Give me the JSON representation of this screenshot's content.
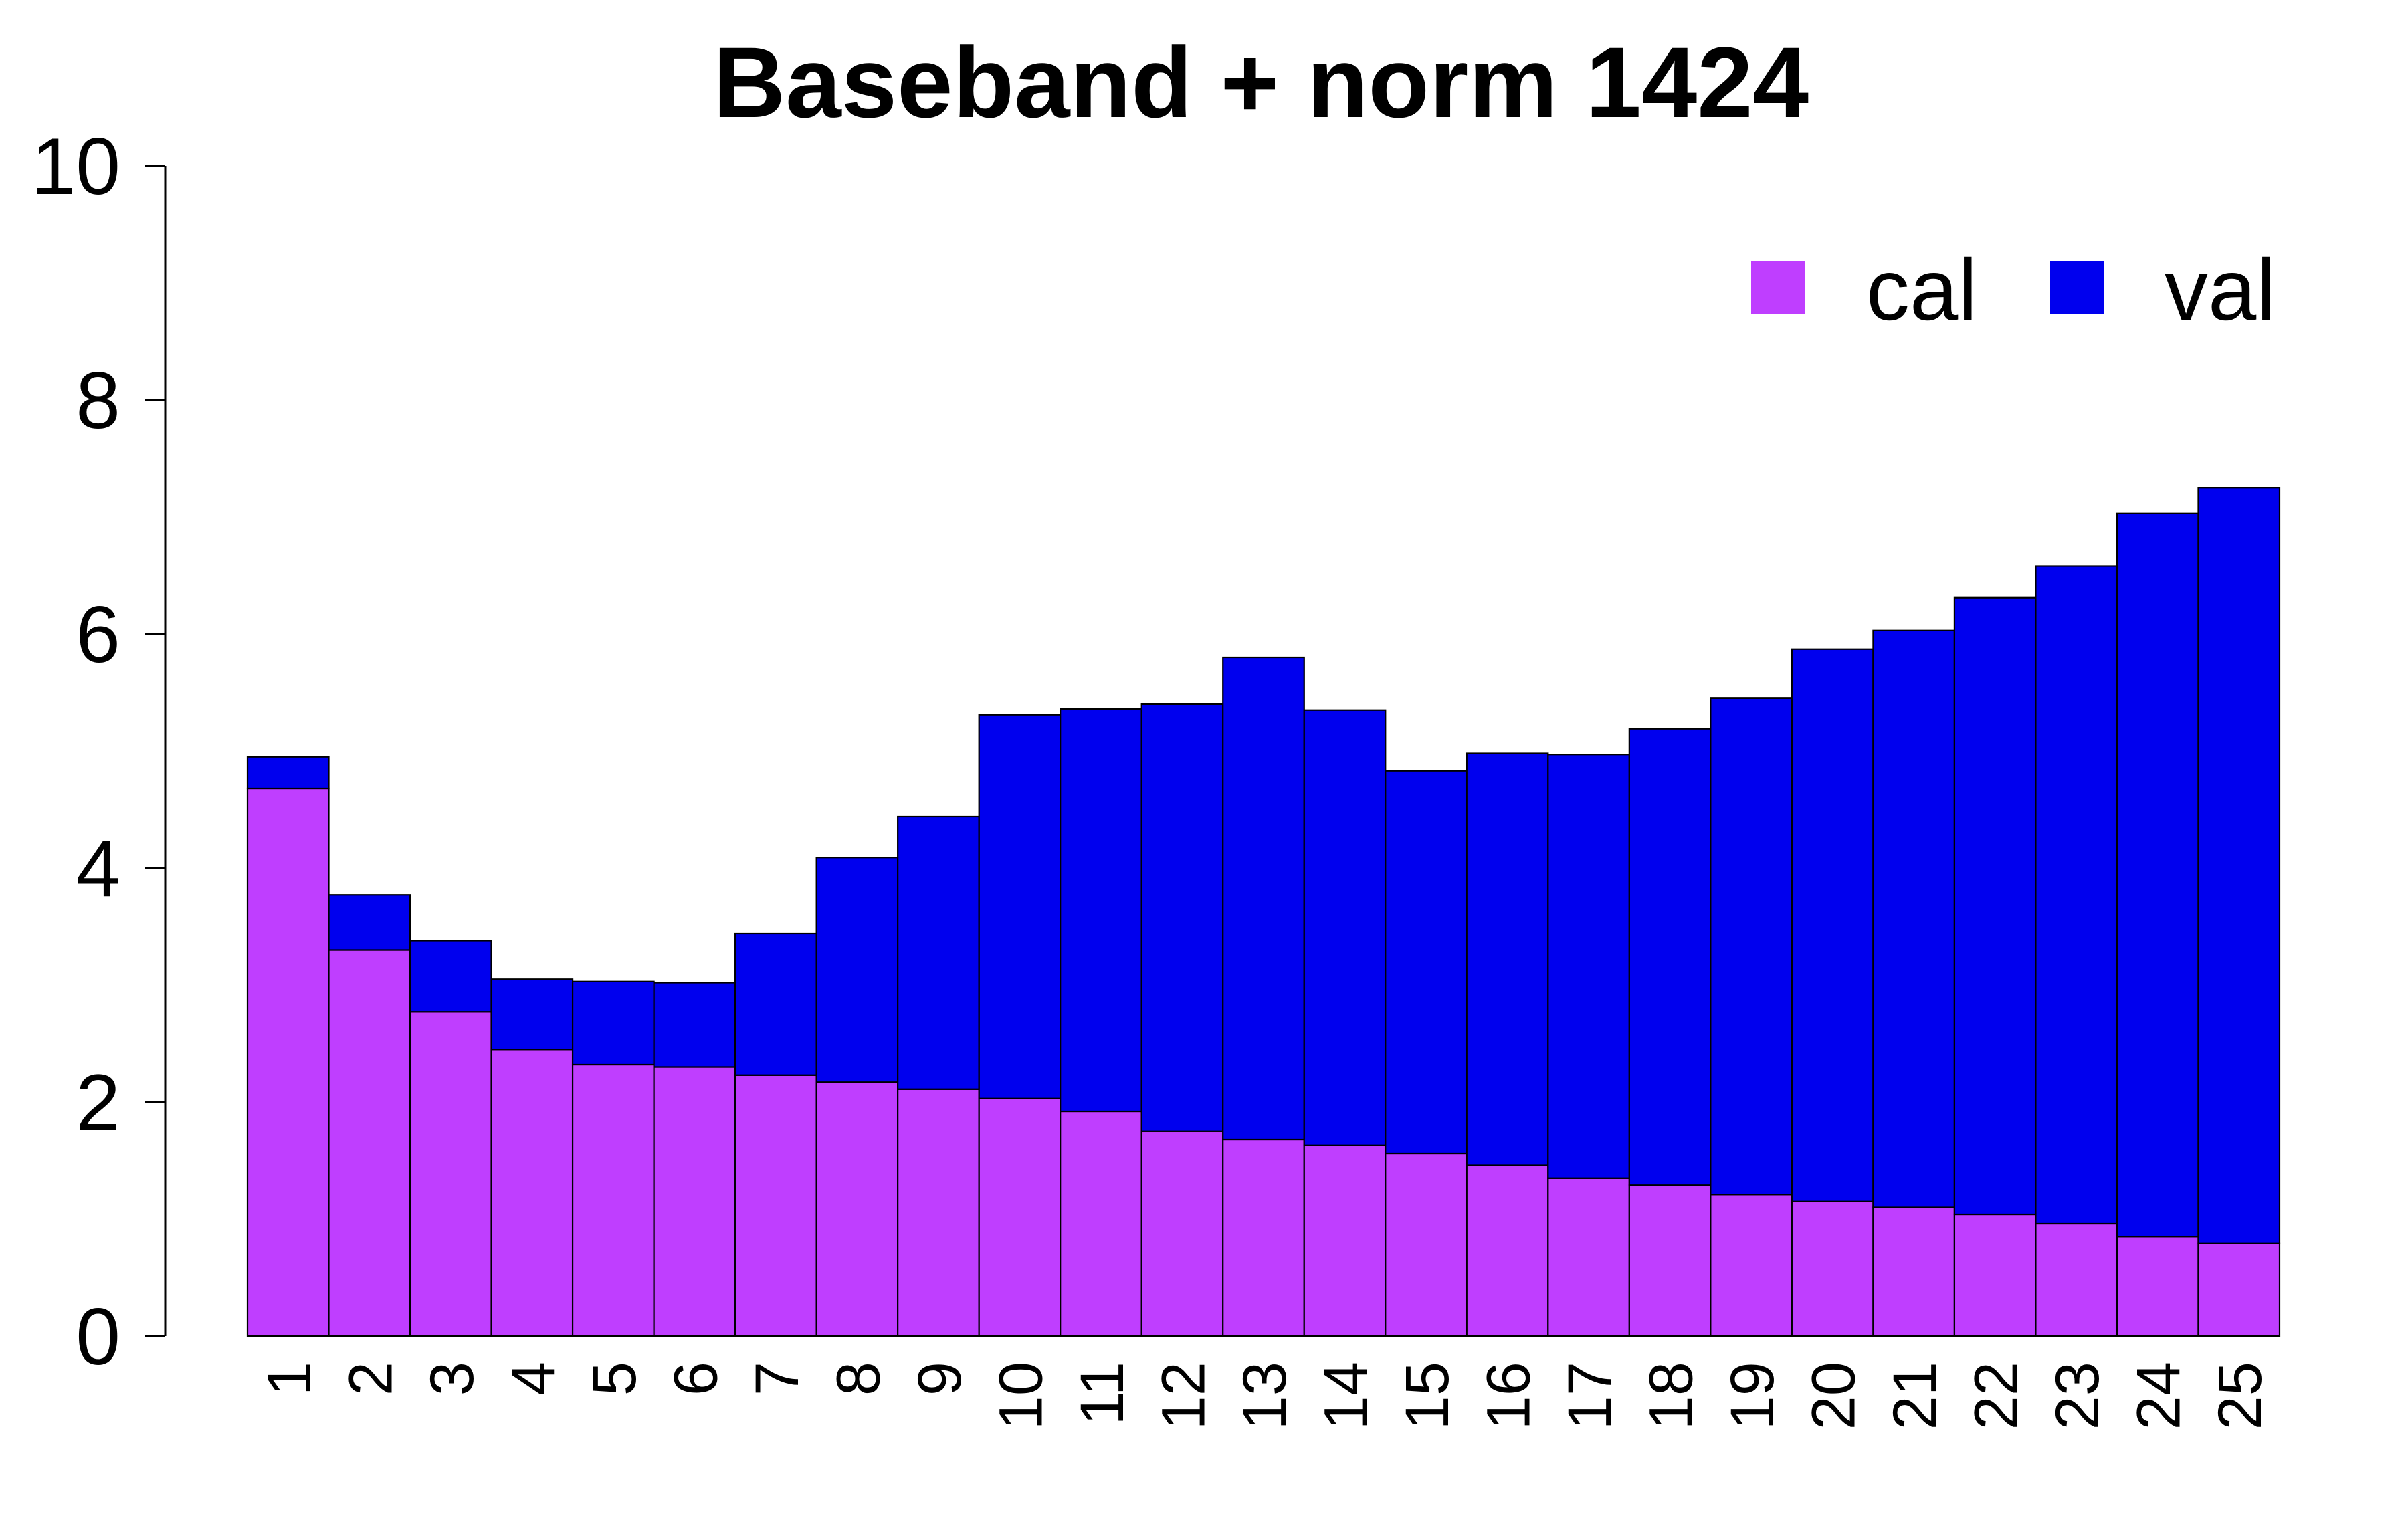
{
  "chart_data": {
    "type": "bar",
    "stacked": true,
    "title": "Baseband + norm 1424",
    "xlabel": "",
    "ylabel": "",
    "ylim": [
      0,
      10
    ],
    "yticks": [
      0,
      2,
      4,
      6,
      8,
      10
    ],
    "grid": false,
    "legend_position": "top-right",
    "categories": [
      "1",
      "2",
      "3",
      "4",
      "5",
      "6",
      "7",
      "8",
      "9",
      "10",
      "11",
      "12",
      "13",
      "14",
      "15",
      "16",
      "17",
      "18",
      "19",
      "20",
      "21",
      "22",
      "23",
      "24",
      "25"
    ],
    "series": [
      {
        "name": "cal",
        "color": "#BF3EFF",
        "values": [
          4.68,
          3.3,
          2.77,
          2.45,
          2.32,
          2.3,
          2.23,
          2.17,
          2.11,
          2.03,
          1.92,
          1.75,
          1.68,
          1.63,
          1.56,
          1.46,
          1.35,
          1.29,
          1.21,
          1.15,
          1.1,
          1.04,
          0.96,
          0.85,
          0.79
        ]
      },
      {
        "name": "val",
        "color": "#0000EE",
        "values": [
          0.27,
          0.47,
          0.61,
          0.6,
          0.71,
          0.72,
          1.21,
          1.92,
          2.33,
          3.28,
          3.44,
          3.65,
          4.12,
          3.72,
          3.27,
          3.52,
          3.62,
          3.9,
          4.24,
          4.72,
          4.93,
          5.27,
          5.62,
          6.18,
          6.46
        ]
      }
    ]
  }
}
